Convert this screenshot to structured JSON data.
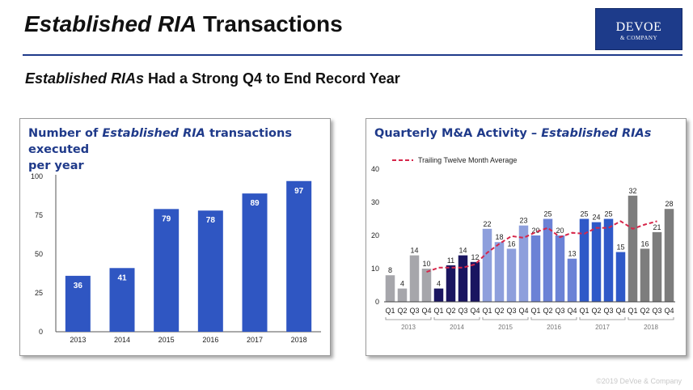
{
  "page": {
    "title_italic": "Established RIA",
    "title_rest": " Transactions",
    "subtitle_italic": "Established RIAs",
    "subtitle_rest": " Had a Strong Q4 to End Record Year",
    "footer": "©2019 DeVoe & Company"
  },
  "logo": {
    "main": "DEVOE",
    "sub": "& COMPANY"
  },
  "colors": {
    "title_rule": "#1f3a8a",
    "bar_blue": "#2f56c2",
    "q_2013": "#a6a6ab",
    "q_2014": "#1a1560",
    "q_2015": "#8e9fdc",
    "q_2016": "#6b82d6",
    "q_2017": "#2f59c8",
    "q_2018": "#7d7d7d",
    "ttm_line": "#d6264a"
  },
  "chart_data": [
    {
      "type": "bar",
      "title_part1": "Number of ",
      "title_italic": "Established RIA",
      "title_part2": " transactions executed",
      "title_line2": "per year",
      "categories": [
        "2013",
        "2014",
        "2015",
        "2016",
        "2017",
        "2018"
      ],
      "values": [
        36,
        41,
        79,
        78,
        89,
        97
      ],
      "ylim": [
        0,
        100
      ],
      "yticks": [
        0,
        25,
        50,
        75,
        100
      ],
      "xlabel": "",
      "ylabel": "",
      "grid": false
    },
    {
      "type": "bar",
      "title_part1": "Quarterly M&A Activity – ",
      "title_italic": "Established RIAs",
      "legend": "Trailing Twelve Month Average",
      "legend_position": "top-left",
      "ylim": [
        0,
        40
      ],
      "yticks": [
        0,
        10,
        20,
        30,
        40
      ],
      "quarter_labels": [
        "Q1",
        "Q2",
        "Q3",
        "Q4"
      ],
      "years": [
        {
          "year": "2013",
          "values": [
            8,
            4,
            14,
            10
          ],
          "color_key": "q_2013"
        },
        {
          "year": "2014",
          "values": [
            4,
            11,
            14,
            12
          ],
          "color_key": "q_2014"
        },
        {
          "year": "2015",
          "values": [
            22,
            18,
            16,
            23
          ],
          "color_key": "q_2015"
        },
        {
          "year": "2016",
          "values": [
            20,
            25,
            20,
            13
          ],
          "color_key": "q_2016"
        },
        {
          "year": "2017",
          "values": [
            25,
            24,
            25,
            15
          ],
          "color_key": "q_2017"
        },
        {
          "year": "2018",
          "values": [
            32,
            16,
            21,
            28
          ],
          "color_key": "q_2018"
        }
      ],
      "ttm_average": [
        9,
        10.3,
        10.3,
        10.3,
        11.3,
        14.8,
        17.5,
        19.8,
        19.3,
        21.0,
        22.3,
        19.5,
        20.8,
        20.5,
        22.3,
        22.3,
        24.3,
        22.0,
        23.3,
        24.3
      ]
    }
  ]
}
